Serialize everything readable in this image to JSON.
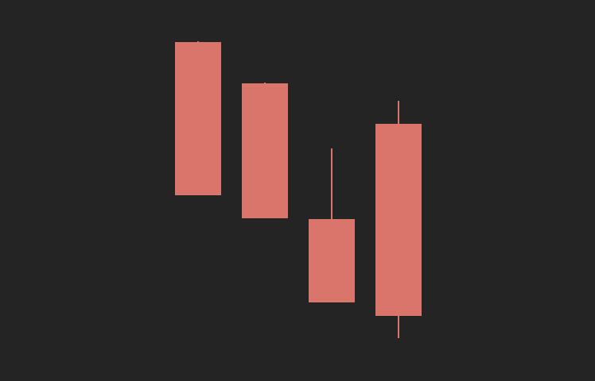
{
  "colors": {
    "background": "#242424",
    "bearish": "#D9756A"
  },
  "chart_data": {
    "type": "candlestick",
    "title": "",
    "xlabel": "",
    "ylabel": "",
    "ylim": [
      0,
      480
    ],
    "grid": false,
    "legend": "none",
    "candles": [
      {
        "open": 427,
        "close": 234,
        "high": 428,
        "low": 234
      },
      {
        "open": 375,
        "close": 205,
        "high": 376,
        "low": 205
      },
      {
        "open": 204,
        "close": 99,
        "high": 293,
        "low": 99
      },
      {
        "open": 324,
        "close": 82,
        "high": 353,
        "low": 54
      }
    ]
  }
}
